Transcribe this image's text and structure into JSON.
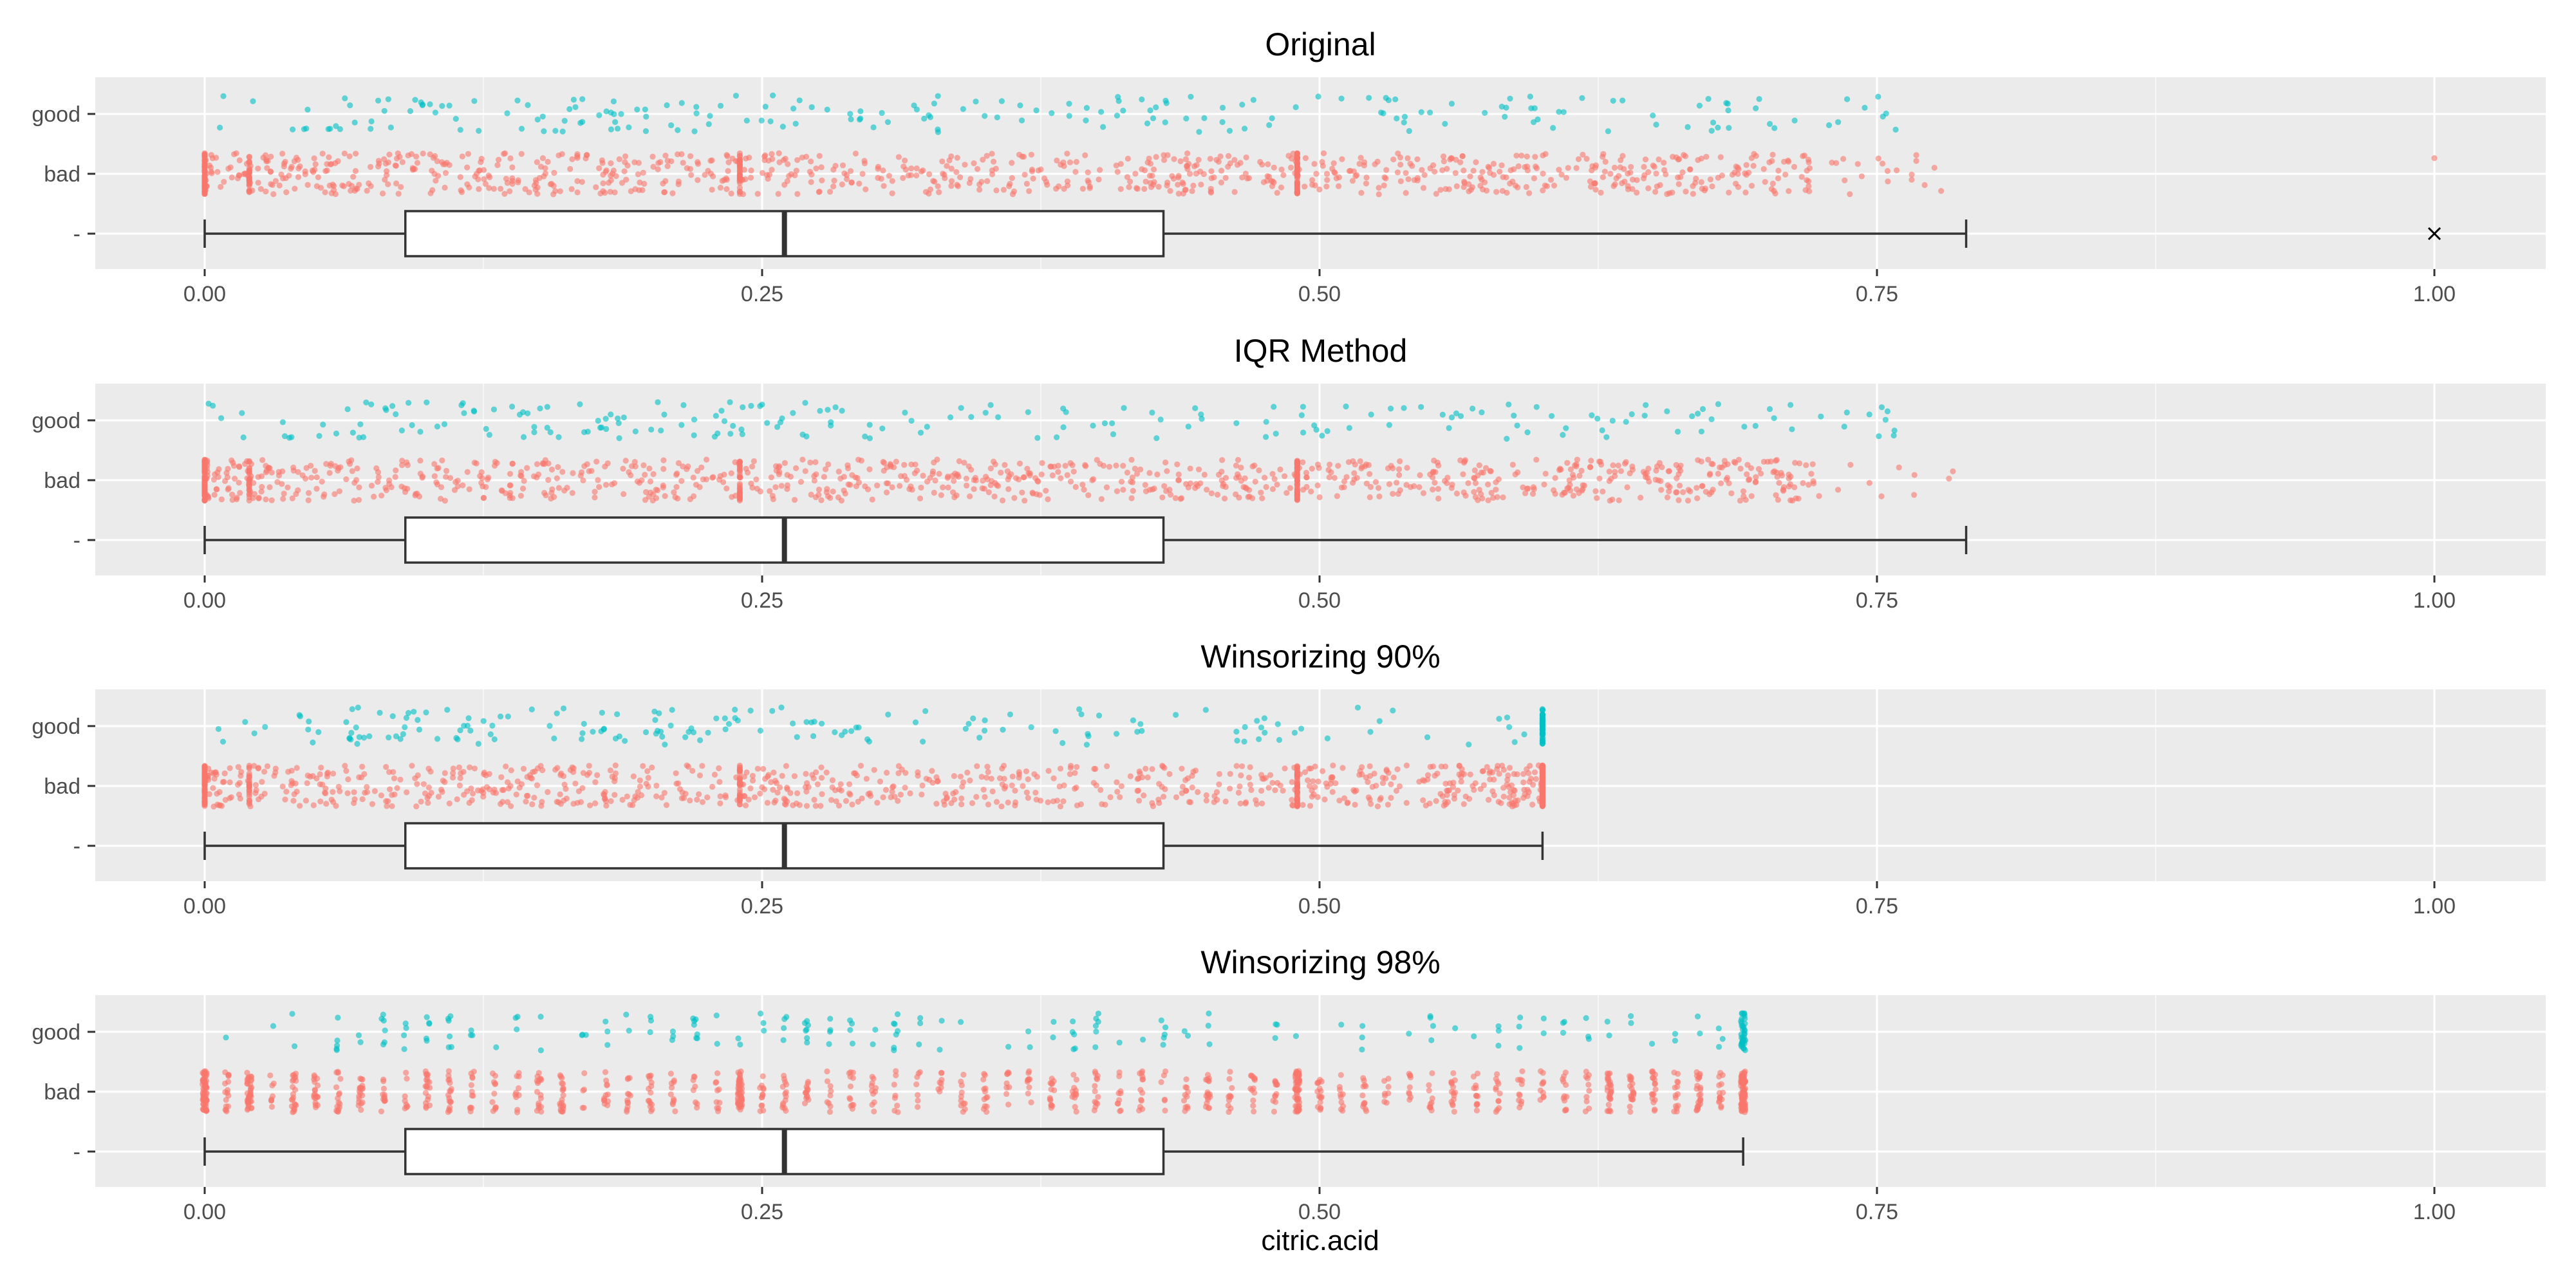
{
  "colors": {
    "bad": "#F8766D",
    "good": "#00BFC4",
    "panel_bg": "#EBEBEB",
    "grid": "#FFFFFF",
    "box_line": "#333333"
  },
  "chart_data": {
    "type": "boxplot-with-jitter",
    "xlabel": "citric.acid",
    "xlim": [
      -0.05,
      1.05
    ],
    "x_ticks": [
      "0.00",
      "0.25",
      "0.50",
      "0.75",
      "1.00"
    ],
    "y_categories": [
      "good",
      "bad",
      "-"
    ],
    "grid": true,
    "panels": [
      {
        "title": "Original",
        "box": {
          "whisker_low": 0.0,
          "q1": 0.09,
          "median": 0.26,
          "q3": 0.43,
          "whisker_high": 0.79,
          "outliers": [
            1.0
          ]
        },
        "points": {
          "bad_max": 0.79,
          "good_max": 0.76,
          "snap_max": false,
          "bad_extra": [
            1.0
          ]
        }
      },
      {
        "title": "IQR Method",
        "box": {
          "whisker_low": 0.0,
          "q1": 0.09,
          "median": 0.26,
          "q3": 0.43,
          "whisker_high": 0.79,
          "outliers": []
        },
        "points": {
          "bad_max": 0.79,
          "good_max": 0.76,
          "snap_max": false,
          "bad_extra": []
        }
      },
      {
        "title": "Winsorizing 90%",
        "box": {
          "whisker_low": 0.0,
          "q1": 0.09,
          "median": 0.26,
          "q3": 0.43,
          "whisker_high": 0.6,
          "outliers": []
        },
        "points": {
          "bad_max": 0.6,
          "good_max": 0.6,
          "snap_max": true,
          "bad_extra": []
        }
      },
      {
        "title": "Winsorizing 98%",
        "box": {
          "whisker_low": 0.0,
          "q1": 0.09,
          "median": 0.26,
          "q3": 0.43,
          "whisker_high": 0.69,
          "outliers": []
        },
        "points": {
          "bad_max": 0.69,
          "good_max": 0.69,
          "snap_max": true,
          "discrete": true,
          "bad_extra": []
        }
      }
    ]
  }
}
